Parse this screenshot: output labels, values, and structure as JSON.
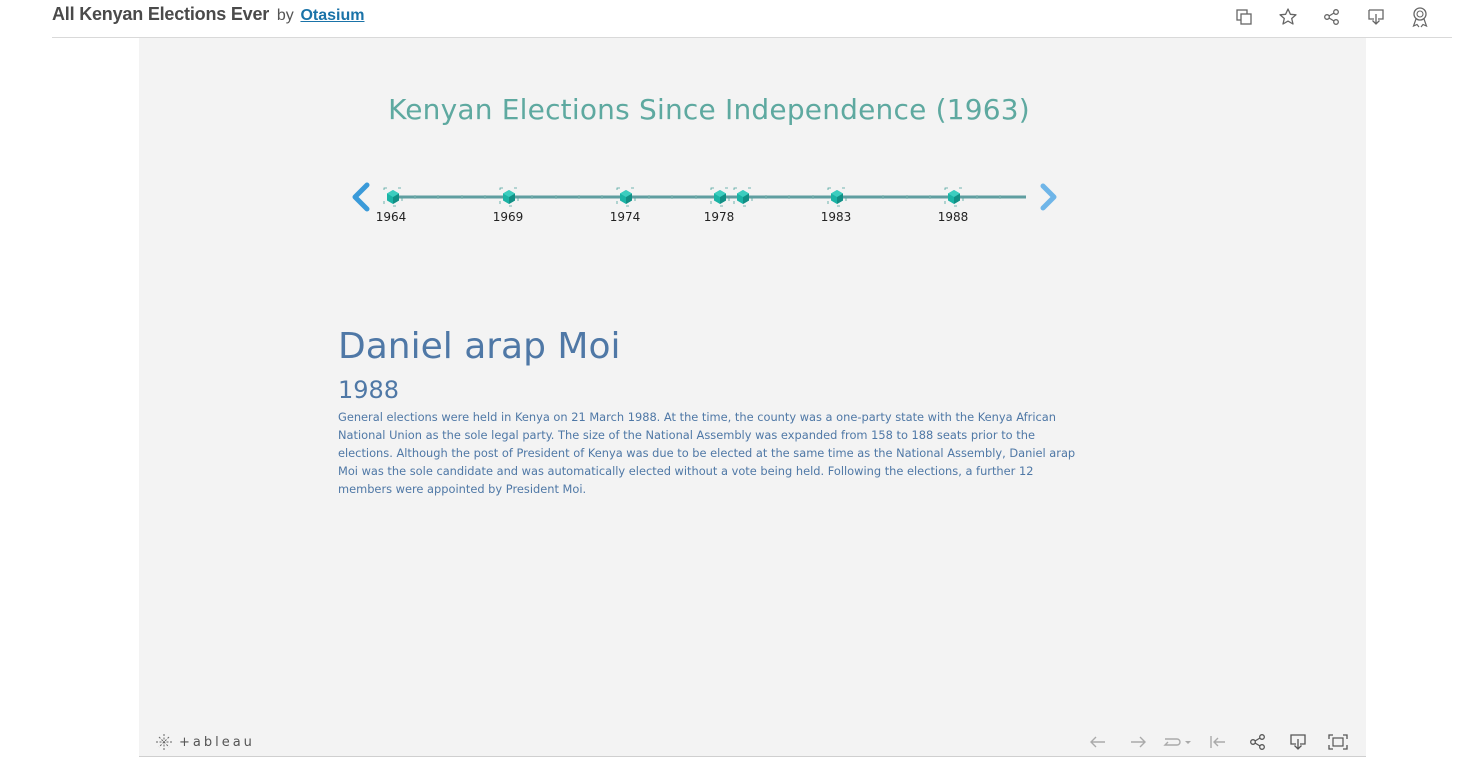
{
  "header": {
    "workbook_title": "All Kenyan Elections Ever",
    "by_label": "by",
    "author": "Otasium",
    "actions": [
      "copy-icon",
      "favorite-star-icon",
      "share-icon",
      "download-icon",
      "badge-icon"
    ]
  },
  "dashboard": {
    "title": "Kenyan Elections Since Independence (1963)",
    "timeline": {
      "prev_icon": "chevron-left-icon",
      "next_icon": "chevron-right-icon",
      "years": [
        "1964",
        "1969",
        "1974",
        "1978",
        "1983",
        "1988"
      ],
      "selected_year": "1988"
    },
    "detail": {
      "person": "Daniel arap Moi",
      "year": "1988",
      "description": "General elections were held in Kenya on 21 March 1988. At the time, the county was a one-party state with the Kenya African National Union as the sole legal party. The size of the National Assembly was expanded from 158 to 188 seats prior to the elections. Although the post of President of Kenya was due to be elected at the same time as the National Assembly, Daniel arap Moi was the sole candidate and was automatically elected without a vote being held. Following the elections, a further 12 members were appointed by President Moi."
    }
  },
  "footer": {
    "logo_text": "+ableau",
    "actions": [
      "undo-icon",
      "redo-icon",
      "revert-icon",
      "reset-icon",
      "share-icon",
      "download-icon",
      "fullscreen-icon"
    ]
  },
  "colors": {
    "title": "#5ea9a0",
    "detail_text": "#4f78a6",
    "timeline_line": "#5f9ea0",
    "marker": "#1bb3a5",
    "arrow": "#3a9ad9"
  }
}
